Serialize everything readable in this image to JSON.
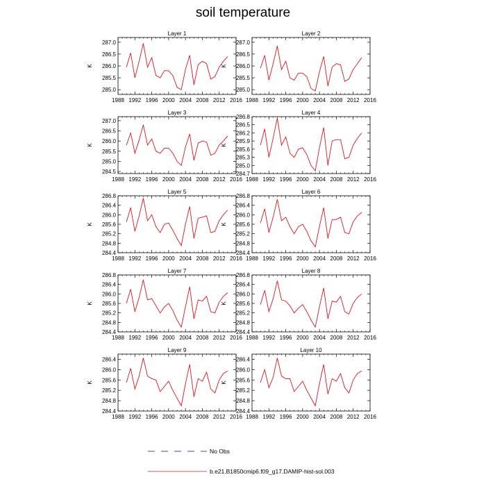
{
  "title": "soil temperature",
  "ylabel": "K",
  "line_color": "#e0141e",
  "legend": {
    "obs_label": "No Obs",
    "model_label": "b.e21.B1850cmip6.f09_g17.DAMIP-hist-sol.003",
    "obs_color": "#4a4aa8",
    "model_color": "#e0141e"
  },
  "chart_data": [
    {
      "type": "line",
      "title": "Layer 1",
      "ylabel": "K",
      "xlim": [
        1988,
        2016
      ],
      "xticks": [
        1988,
        1992,
        1996,
        2000,
        2004,
        2008,
        2012,
        2016
      ],
      "ylim": [
        284.8,
        287.2
      ],
      "yticks": [
        285.0,
        285.5,
        286.0,
        286.5,
        287.0
      ],
      "ydec": 1,
      "x": [
        1990,
        1991,
        1992,
        1993,
        1994,
        1995,
        1996,
        1997,
        1998,
        1999,
        2000,
        2001,
        2002,
        2003,
        2004,
        2005,
        2006,
        2007,
        2008,
        2009,
        2010,
        2011,
        2012,
        2013,
        2014
      ],
      "values": [
        285.95,
        286.55,
        285.5,
        286.2,
        286.95,
        285.95,
        286.35,
        285.6,
        285.5,
        285.8,
        285.8,
        285.6,
        285.1,
        285.0,
        285.85,
        286.45,
        285.2,
        286.05,
        286.2,
        286.1,
        285.45,
        285.55,
        285.95,
        286.2,
        286.4
      ]
    },
    {
      "type": "line",
      "title": "Layer 2",
      "ylabel": "K",
      "xlim": [
        1988,
        2016
      ],
      "xticks": [
        1988,
        1992,
        1996,
        2000,
        2004,
        2008,
        2012,
        2016
      ],
      "ylim": [
        284.8,
        287.2
      ],
      "yticks": [
        285.0,
        285.5,
        286.0,
        286.5,
        287.0
      ],
      "ydec": 1,
      "x": [
        1990,
        1991,
        1992,
        1993,
        1994,
        1995,
        1996,
        1997,
        1998,
        1999,
        2000,
        2001,
        2002,
        2003,
        2004,
        2005,
        2006,
        2007,
        2008,
        2009,
        2010,
        2011,
        2012,
        2013,
        2014
      ],
      "values": [
        285.9,
        286.45,
        285.4,
        286.1,
        286.85,
        285.85,
        286.2,
        285.5,
        285.4,
        285.7,
        285.7,
        285.55,
        285.05,
        284.95,
        285.75,
        286.4,
        285.15,
        285.95,
        286.1,
        286.05,
        285.35,
        285.45,
        285.85,
        286.1,
        286.35
      ]
    },
    {
      "type": "line",
      "title": "Layer 3",
      "ylabel": "K",
      "xlim": [
        1988,
        2016
      ],
      "xticks": [
        1988,
        1992,
        1996,
        2000,
        2004,
        2008,
        2012,
        2016
      ],
      "ylim": [
        284.4,
        287.2
      ],
      "yticks": [
        284.5,
        285.0,
        285.5,
        286.0,
        286.5,
        287.0
      ],
      "ydec": 1,
      "x": [
        1990,
        1991,
        1992,
        1993,
        1994,
        1995,
        1996,
        1997,
        1998,
        1999,
        2000,
        2001,
        2002,
        2003,
        2004,
        2005,
        2006,
        2007,
        2008,
        2009,
        2010,
        2011,
        2012,
        2013,
        2014
      ],
      "values": [
        285.8,
        286.4,
        285.4,
        286.05,
        286.8,
        285.8,
        286.1,
        285.5,
        285.4,
        285.65,
        285.65,
        285.4,
        285.0,
        284.8,
        285.7,
        286.35,
        285.05,
        285.9,
        286.0,
        285.95,
        285.3,
        285.4,
        285.8,
        286.0,
        286.25
      ]
    },
    {
      "type": "line",
      "title": "Layer 4",
      "ylabel": "K",
      "xlim": [
        1988,
        2016
      ],
      "xticks": [
        1988,
        1992,
        1996,
        2000,
        2004,
        2008,
        2012,
        2016
      ],
      "ylim": [
        284.7,
        286.8
      ],
      "yticks": [
        284.7,
        285.0,
        285.3,
        285.6,
        285.9,
        286.2,
        286.5,
        286.8
      ],
      "ydec": 1,
      "x": [
        1990,
        1991,
        1992,
        1993,
        1994,
        1995,
        1996,
        1997,
        1998,
        1999,
        2000,
        2001,
        2002,
        2003,
        2004,
        2005,
        2006,
        2007,
        2008,
        2009,
        2010,
        2011,
        2012,
        2013,
        2014
      ],
      "values": [
        285.75,
        286.35,
        285.3,
        286.0,
        286.75,
        285.75,
        286.05,
        285.45,
        285.3,
        285.6,
        285.65,
        285.4,
        285.0,
        284.8,
        285.65,
        286.4,
        285.0,
        285.9,
        285.95,
        285.95,
        285.25,
        285.3,
        285.75,
        286.0,
        286.2
      ]
    },
    {
      "type": "line",
      "title": "Layer 5",
      "ylabel": "K",
      "xlim": [
        1988,
        2016
      ],
      "xticks": [
        1988,
        1992,
        1996,
        2000,
        2004,
        2008,
        2012,
        2016
      ],
      "ylim": [
        284.4,
        286.8
      ],
      "yticks": [
        284.4,
        284.8,
        285.2,
        285.6,
        286.0,
        286.4,
        286.8
      ],
      "ydec": 1,
      "x": [
        1990,
        1991,
        1992,
        1993,
        1994,
        1995,
        1996,
        1997,
        1998,
        1999,
        2000,
        2001,
        2002,
        2003,
        2004,
        2005,
        2006,
        2007,
        2008,
        2009,
        2010,
        2011,
        2012,
        2013,
        2014
      ],
      "values": [
        285.7,
        286.3,
        285.3,
        285.95,
        286.7,
        285.75,
        286.0,
        285.5,
        285.25,
        285.6,
        285.65,
        285.35,
        285.0,
        284.7,
        285.6,
        286.35,
        285.0,
        285.85,
        285.9,
        285.95,
        285.25,
        285.3,
        285.75,
        286.0,
        286.2
      ]
    },
    {
      "type": "line",
      "title": "Layer 6",
      "ylabel": "K",
      "xlim": [
        1988,
        2016
      ],
      "xticks": [
        1988,
        1992,
        1996,
        2000,
        2004,
        2008,
        2012,
        2016
      ],
      "ylim": [
        284.4,
        286.8
      ],
      "yticks": [
        284.4,
        284.8,
        285.2,
        285.6,
        286.0,
        286.4,
        286.8
      ],
      "ydec": 1,
      "x": [
        1990,
        1991,
        1992,
        1993,
        1994,
        1995,
        1996,
        1997,
        1998,
        1999,
        2000,
        2001,
        2002,
        2003,
        2004,
        2005,
        2006,
        2007,
        2008,
        2009,
        2010,
        2011,
        2012,
        2013,
        2014
      ],
      "values": [
        285.65,
        286.25,
        285.25,
        285.9,
        286.65,
        285.75,
        285.9,
        285.5,
        285.2,
        285.5,
        285.6,
        285.3,
        284.9,
        284.65,
        285.5,
        286.3,
        285.0,
        285.8,
        285.8,
        285.9,
        285.25,
        285.2,
        285.7,
        285.95,
        286.1
      ]
    },
    {
      "type": "line",
      "title": "Layer 7",
      "ylabel": "K",
      "xlim": [
        1988,
        2016
      ],
      "xticks": [
        1988,
        1992,
        1996,
        2000,
        2004,
        2008,
        2012,
        2016
      ],
      "ylim": [
        284.4,
        286.8
      ],
      "yticks": [
        284.4,
        284.8,
        285.2,
        285.6,
        286.0,
        286.4,
        286.8
      ],
      "ydec": 1,
      "x": [
        1990,
        1991,
        1992,
        1993,
        1994,
        1995,
        1996,
        1997,
        1998,
        1999,
        2000,
        2001,
        2002,
        2003,
        2004,
        2005,
        2006,
        2007,
        2008,
        2009,
        2010,
        2011,
        2012,
        2013,
        2014
      ],
      "values": [
        285.6,
        286.2,
        285.25,
        285.85,
        286.6,
        285.75,
        285.8,
        285.5,
        285.2,
        285.45,
        285.6,
        285.3,
        284.9,
        284.6,
        285.45,
        286.3,
        284.95,
        285.75,
        285.7,
        285.9,
        285.25,
        285.2,
        285.65,
        285.9,
        286.05
      ]
    },
    {
      "type": "line",
      "title": "Layer 8",
      "ylabel": "K",
      "xlim": [
        1988,
        2016
      ],
      "xticks": [
        1988,
        1992,
        1996,
        2000,
        2004,
        2008,
        2012,
        2016
      ],
      "ylim": [
        284.4,
        286.8
      ],
      "yticks": [
        284.4,
        284.8,
        285.2,
        285.6,
        286.0,
        286.4,
        286.8
      ],
      "ydec": 1,
      "x": [
        1990,
        1991,
        1992,
        1993,
        1994,
        1995,
        1996,
        1997,
        1998,
        1999,
        2000,
        2001,
        2002,
        2003,
        2004,
        2005,
        2006,
        2007,
        2008,
        2009,
        2010,
        2011,
        2012,
        2013,
        2014
      ],
      "values": [
        285.55,
        286.15,
        285.25,
        285.8,
        286.55,
        285.75,
        285.7,
        285.5,
        285.2,
        285.4,
        285.55,
        285.25,
        284.9,
        284.6,
        285.45,
        286.25,
        284.95,
        285.7,
        285.65,
        285.9,
        285.25,
        285.15,
        285.6,
        285.85,
        286.0
      ]
    },
    {
      "type": "line",
      "title": "Layer 9",
      "ylabel": "K",
      "xlim": [
        1988,
        2016
      ],
      "xticks": [
        1988,
        1992,
        1996,
        2000,
        2004,
        2008,
        2012,
        2016
      ],
      "ylim": [
        284.4,
        286.6
      ],
      "yticks": [
        284.4,
        284.8,
        285.2,
        285.6,
        286.0,
        286.4
      ],
      "ydec": 1,
      "x": [
        1990,
        1991,
        1992,
        1993,
        1994,
        1995,
        1996,
        1997,
        1998,
        1999,
        2000,
        2001,
        2002,
        2003,
        2004,
        2005,
        2006,
        2007,
        2008,
        2009,
        2010,
        2011,
        2012,
        2013,
        2014
      ],
      "values": [
        285.5,
        286.05,
        285.25,
        285.75,
        286.45,
        285.75,
        285.65,
        285.6,
        285.15,
        285.35,
        285.55,
        285.2,
        284.9,
        284.6,
        285.45,
        286.2,
        284.95,
        285.65,
        285.55,
        285.9,
        285.25,
        285.1,
        285.6,
        285.85,
        285.95
      ]
    },
    {
      "type": "line",
      "title": "Layer 10",
      "ylabel": "K",
      "xlim": [
        1988,
        2016
      ],
      "xticks": [
        1988,
        1992,
        1996,
        2000,
        2004,
        2008,
        2012,
        2016
      ],
      "ylim": [
        284.4,
        286.6
      ],
      "yticks": [
        284.4,
        284.8,
        285.2,
        285.6,
        286.0,
        286.4
      ],
      "ydec": 1,
      "x": [
        1990,
        1991,
        1992,
        1993,
        1994,
        1995,
        1996,
        1997,
        1998,
        1999,
        2000,
        2001,
        2002,
        2003,
        2004,
        2005,
        2006,
        2007,
        2008,
        2009,
        2010,
        2011,
        2012,
        2013,
        2014
      ],
      "values": [
        285.5,
        286.0,
        285.3,
        285.7,
        286.45,
        285.75,
        285.65,
        285.65,
        285.15,
        285.35,
        285.55,
        285.2,
        284.9,
        284.6,
        285.45,
        286.2,
        285.05,
        285.65,
        285.55,
        285.85,
        285.3,
        285.1,
        285.6,
        285.85,
        285.95
      ]
    }
  ]
}
